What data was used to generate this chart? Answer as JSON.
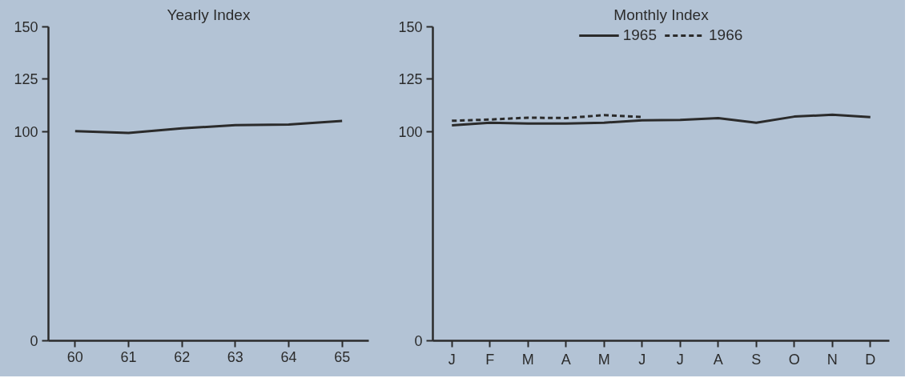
{
  "chart_data": [
    {
      "type": "line",
      "title": "Yearly Index",
      "categories": [
        "60",
        "61",
        "62",
        "63",
        "64",
        "65"
      ],
      "series": [
        {
          "color": "#2b2b2b",
          "values": [
            100.2,
            99.3,
            101.5,
            103,
            103.3,
            105
          ]
        }
      ],
      "ylim": [
        0,
        150
      ],
      "yticks": [
        0,
        100,
        125,
        150
      ],
      "grid": false,
      "legend": false,
      "line_style": "solid"
    },
    {
      "type": "line",
      "title": "Monthly Index",
      "categories": [
        "J",
        "F",
        "M",
        "A",
        "M",
        "J",
        "J",
        "A",
        "S",
        "O",
        "N",
        "D"
      ],
      "series": [
        {
          "name": "1965",
          "color": "#2b2b2b",
          "line_style": "solid",
          "values": [
            102.9,
            104.2,
            103.8,
            103.8,
            104.2,
            105.3,
            105.5,
            106.4,
            104.2,
            107.1,
            108,
            106.9
          ]
        },
        {
          "name": "1966",
          "color": "#2b2b2b",
          "line_style": "dashed",
          "values": [
            105.1,
            105.7,
            106.6,
            106.4,
            107.8,
            106.9,
            null,
            null,
            null,
            null,
            null,
            null
          ]
        }
      ],
      "ylim": [
        0,
        150
      ],
      "yticks": [
        0,
        100,
        125,
        150
      ],
      "grid": false,
      "legend": "top"
    }
  ]
}
